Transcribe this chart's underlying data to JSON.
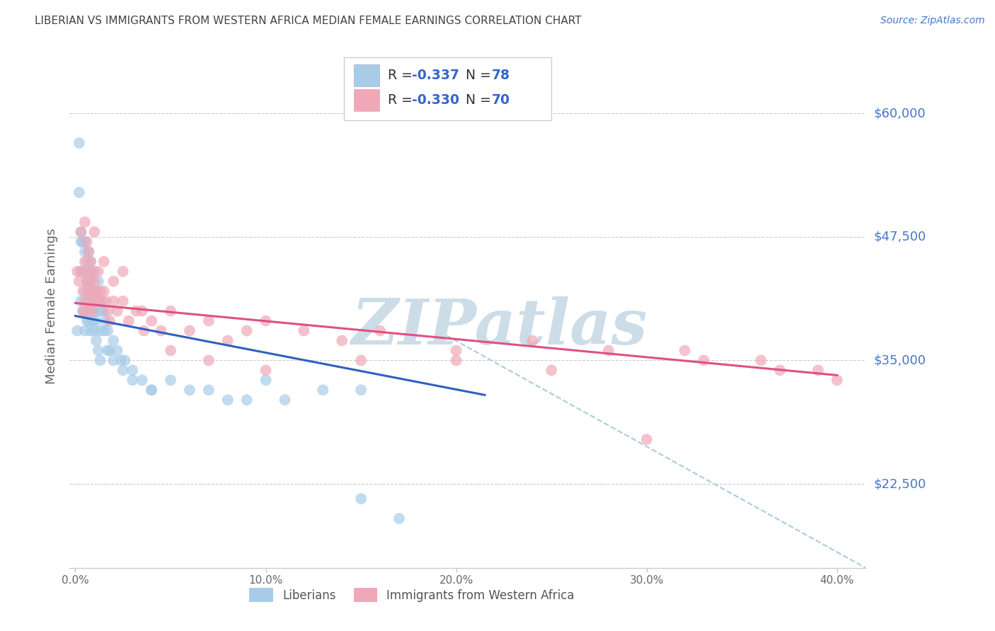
{
  "title": "LIBERIAN VS IMMIGRANTS FROM WESTERN AFRICA MEDIAN FEMALE EARNINGS CORRELATION CHART",
  "source": "Source: ZipAtlas.com",
  "ylabel": "Median Female Earnings",
  "xlabel_ticks": [
    "0.0%",
    "10.0%",
    "20.0%",
    "30.0%",
    "40.0%"
  ],
  "xlabel_vals": [
    0.0,
    0.1,
    0.2,
    0.3,
    0.4
  ],
  "ytick_labels": [
    "$22,500",
    "$35,000",
    "$47,500",
    "$60,000"
  ],
  "ytick_vals": [
    22500,
    35000,
    47500,
    60000
  ],
  "ylim": [
    14000,
    67000
  ],
  "xlim": [
    -0.003,
    0.415
  ],
  "watermark": "ZIPatlas",
  "watermark_color": "#ccdde8",
  "liberian_color": "#a8cce8",
  "western_africa_color": "#f0a8b8",
  "trend_liberian_color": "#3060c0",
  "trend_western_color": "#e05080",
  "trend_dashed_color": "#aaccdd",
  "background_color": "#ffffff",
  "grid_color": "#cccccc",
  "title_color": "#444444",
  "axis_label_color": "#666666",
  "right_label_color": "#4477cc",
  "legend_r_color": "#3366cc",
  "legend_text_color": "#333333",
  "liberian_x": [
    0.001,
    0.002,
    0.002,
    0.003,
    0.003,
    0.003,
    0.004,
    0.004,
    0.004,
    0.005,
    0.005,
    0.005,
    0.005,
    0.005,
    0.006,
    0.006,
    0.006,
    0.006,
    0.007,
    0.007,
    0.007,
    0.007,
    0.008,
    0.008,
    0.008,
    0.008,
    0.009,
    0.009,
    0.009,
    0.01,
    0.01,
    0.01,
    0.011,
    0.011,
    0.012,
    0.012,
    0.013,
    0.013,
    0.014,
    0.015,
    0.016,
    0.017,
    0.018,
    0.02,
    0.022,
    0.024,
    0.026,
    0.03,
    0.035,
    0.04,
    0.05,
    0.06,
    0.07,
    0.08,
    0.09,
    0.1,
    0.11,
    0.13,
    0.15,
    0.003,
    0.004,
    0.005,
    0.006,
    0.007,
    0.008,
    0.009,
    0.01,
    0.011,
    0.012,
    0.013,
    0.015,
    0.017,
    0.02,
    0.025,
    0.03,
    0.04,
    0.15,
    0.17
  ],
  "liberian_y": [
    38000,
    57000,
    52000,
    48000,
    44000,
    41000,
    47000,
    44000,
    40000,
    46000,
    44000,
    42000,
    40000,
    38000,
    45000,
    43000,
    41000,
    39000,
    46000,
    44000,
    42000,
    39000,
    45000,
    43000,
    41000,
    38000,
    44000,
    42000,
    39000,
    44000,
    42000,
    40000,
    42000,
    39000,
    43000,
    40000,
    41000,
    38000,
    40000,
    40000,
    39000,
    38000,
    36000,
    37000,
    36000,
    35000,
    35000,
    34000,
    33000,
    32000,
    33000,
    32000,
    32000,
    31000,
    31000,
    33000,
    31000,
    32000,
    32000,
    47000,
    47000,
    47000,
    44000,
    43000,
    41000,
    39000,
    38000,
    37000,
    36000,
    35000,
    38000,
    36000,
    35000,
    34000,
    33000,
    32000,
    21000,
    19000
  ],
  "western_x": [
    0.001,
    0.002,
    0.003,
    0.003,
    0.004,
    0.004,
    0.005,
    0.005,
    0.006,
    0.006,
    0.007,
    0.007,
    0.008,
    0.008,
    0.009,
    0.009,
    0.01,
    0.01,
    0.011,
    0.012,
    0.013,
    0.014,
    0.015,
    0.016,
    0.017,
    0.018,
    0.02,
    0.022,
    0.025,
    0.028,
    0.032,
    0.036,
    0.04,
    0.045,
    0.05,
    0.06,
    0.07,
    0.08,
    0.09,
    0.1,
    0.12,
    0.14,
    0.16,
    0.2,
    0.24,
    0.28,
    0.32,
    0.36,
    0.39,
    0.005,
    0.006,
    0.007,
    0.008,
    0.009,
    0.01,
    0.012,
    0.015,
    0.02,
    0.025,
    0.035,
    0.05,
    0.07,
    0.1,
    0.15,
    0.2,
    0.25,
    0.3,
    0.33,
    0.37,
    0.4
  ],
  "western_y": [
    44000,
    43000,
    48000,
    44000,
    42000,
    40000,
    45000,
    41000,
    43000,
    40000,
    44000,
    42000,
    43000,
    41000,
    42000,
    40000,
    43000,
    41000,
    42000,
    41000,
    42000,
    41000,
    42000,
    41000,
    40000,
    39000,
    41000,
    40000,
    41000,
    39000,
    40000,
    38000,
    39000,
    38000,
    40000,
    38000,
    39000,
    37000,
    38000,
    39000,
    38000,
    37000,
    38000,
    36000,
    37000,
    36000,
    36000,
    35000,
    34000,
    49000,
    47000,
    46000,
    45000,
    44000,
    48000,
    44000,
    45000,
    43000,
    44000,
    40000,
    36000,
    35000,
    34000,
    35000,
    35000,
    34000,
    27000,
    35000,
    34000,
    33000
  ],
  "trend_liberian_x0": 0.0,
  "trend_liberian_y0": 39500,
  "trend_liberian_x1": 0.215,
  "trend_liberian_y1": 31500,
  "trend_western_x0": 0.0,
  "trend_western_y0": 40800,
  "trend_western_x1": 0.4,
  "trend_western_y1": 33500,
  "trend_dashed_x0": 0.195,
  "trend_dashed_y0": 37500,
  "trend_dashed_x1": 0.415,
  "trend_dashed_y1": 14000,
  "legend_label1": "R = -0.337   N = 78",
  "legend_label2": "R = -0.330   N = 70",
  "bottom_legend": [
    "Liberians",
    "Immigrants from Western Africa"
  ]
}
